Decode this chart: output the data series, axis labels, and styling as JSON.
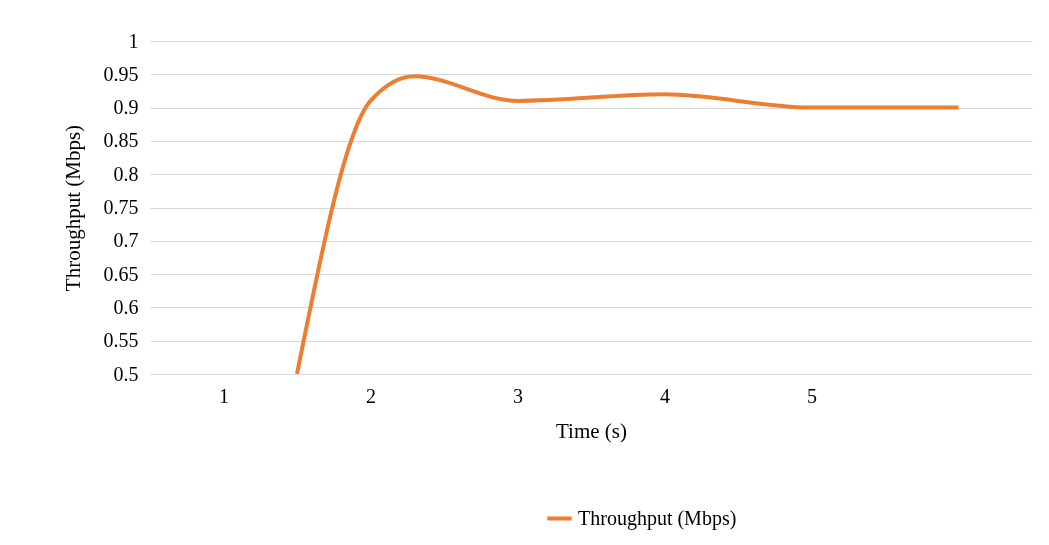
{
  "chart_data": {
    "type": "line",
    "xlabel": "Time (s)",
    "ylabel": "Throughput (Mbps)",
    "x": [
      1.5,
      2,
      2.3,
      3,
      4,
      5,
      6
    ],
    "series": [
      {
        "name": "Throughput (Mbps)",
        "color": "#ed7d31",
        "values": [
          0.5,
          0.91,
          0.947,
          0.91,
          0.92,
          0.9,
          0.9
        ]
      }
    ],
    "xlim": [
      0.5,
      6.5
    ],
    "xticks": [
      1,
      2,
      3,
      4,
      5
    ],
    "ylim": [
      0.5,
      1
    ],
    "yticks": [
      0.5,
      0.55,
      0.6,
      0.65,
      0.7,
      0.75,
      0.8,
      0.85,
      0.9,
      0.95,
      1
    ],
    "grid": "y",
    "legend": "bottom",
    "marker": "none",
    "line_style": "solid"
  }
}
